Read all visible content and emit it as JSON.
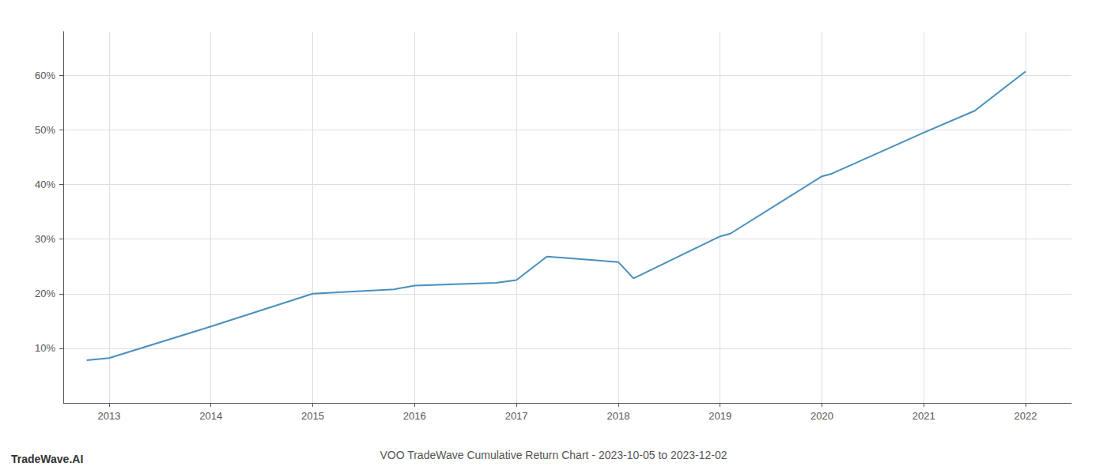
{
  "chart_data": {
    "type": "line",
    "title": "VOO TradeWave Cumulative Return Chart - 2023-10-05 to 2023-12-02",
    "annotations": [
      {
        "text": "TradeWave.AI"
      }
    ],
    "x": [
      2012.78,
      2013.0,
      2014.0,
      2015.0,
      2015.8,
      2016.0,
      2016.8,
      2017.0,
      2017.3,
      2018.0,
      2018.15,
      2019.0,
      2019.1,
      2020.0,
      2020.1,
      2021.0,
      2021.5,
      2022.0
    ],
    "values": [
      0.078,
      0.082,
      0.14,
      0.2,
      0.208,
      0.215,
      0.22,
      0.225,
      0.268,
      0.258,
      0.228,
      0.305,
      0.31,
      0.415,
      0.42,
      0.495,
      0.535,
      0.607
    ],
    "color": "#4a8fbe",
    "xlim": [
      2012.55,
      2022.45
    ],
    "xticks": [
      2013,
      2014,
      2015,
      2016,
      2017,
      2018,
      2019,
      2020,
      2021,
      2022
    ],
    "ylim": [
      0.0,
      0.68
    ],
    "yticks": [
      {
        "value": 0.1,
        "label": "10%"
      },
      {
        "value": 0.2,
        "label": "20%"
      },
      {
        "value": 0.3,
        "label": "30%"
      },
      {
        "value": 0.4,
        "label": "40%"
      },
      {
        "value": 0.5,
        "label": "50%"
      },
      {
        "value": 0.6,
        "label": "60%"
      }
    ],
    "grid": true
  }
}
